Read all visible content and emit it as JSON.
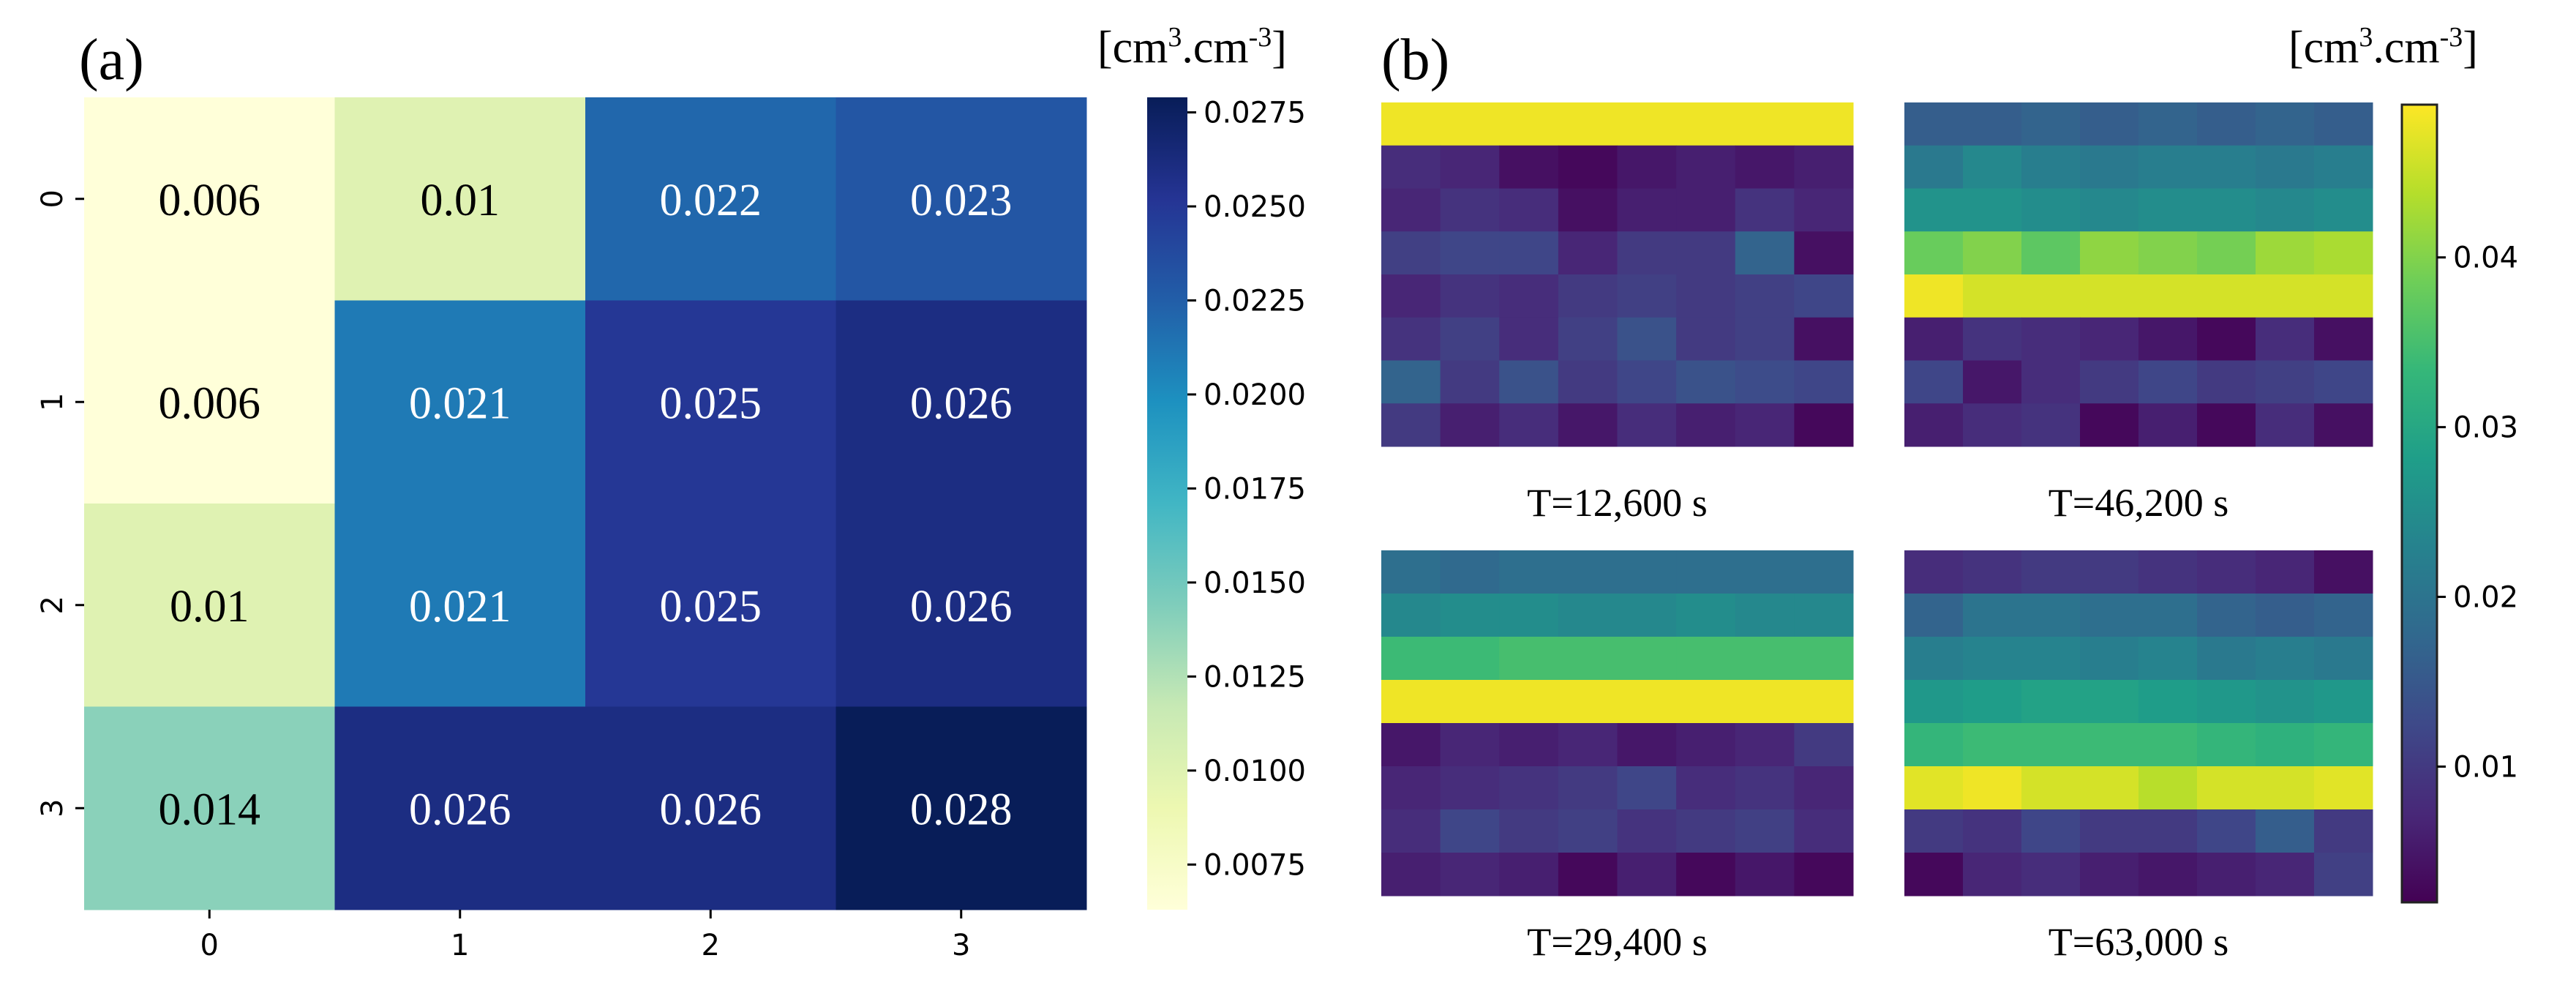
{
  "panel_a": {
    "label": "(a)",
    "unit_main": "[cm",
    "unit_sup1": "3",
    "unit_mid": ".cm",
    "unit_sup2": "-3",
    "unit_end": "]"
  },
  "panel_b": {
    "label": "(b)",
    "unit_main": "[cm",
    "unit_sup1": "3",
    "unit_mid": ".cm",
    "unit_sup2": "-3",
    "unit_end": "]",
    "captions": [
      "T=12,600 s",
      "T=46,200 s",
      "T=29,400 s",
      "T=63,000 s"
    ]
  },
  "chart_data": [
    {
      "type": "heatmap",
      "title": "(a)",
      "colormap": "YlGnBu",
      "x_ticks": [
        "0",
        "1",
        "2",
        "3"
      ],
      "y_ticks": [
        "0",
        "1",
        "2",
        "3"
      ],
      "values": [
        [
          0.006,
          0.01,
          0.022,
          0.023
        ],
        [
          0.006,
          0.021,
          0.025,
          0.026
        ],
        [
          0.01,
          0.021,
          0.025,
          0.026
        ],
        [
          0.014,
          0.026,
          0.026,
          0.028
        ]
      ],
      "value_labels": [
        [
          "0.006",
          "0.01",
          "0.022",
          "0.023"
        ],
        [
          "0.006",
          "0.021",
          "0.025",
          "0.026"
        ],
        [
          "0.01",
          "0.021",
          "0.025",
          "0.026"
        ],
        [
          "0.014",
          "0.026",
          "0.026",
          "0.028"
        ]
      ],
      "colorbar": {
        "range": [
          0.0063,
          0.0279
        ],
        "ticks": [
          0.0075,
          0.01,
          0.0125,
          0.015,
          0.0175,
          0.02,
          0.0225,
          0.025,
          0.0275
        ],
        "tick_labels": [
          "0.0075",
          "0.0100",
          "0.0125",
          "0.0150",
          "0.0175",
          "0.0200",
          "0.0225",
          "0.0250",
          "0.0275"
        ],
        "unit": "[cm3.cm-3]"
      }
    },
    {
      "type": "heatmap",
      "title": "(b)",
      "colormap": "viridis",
      "colorbar": {
        "range": [
          0.002,
          0.049
        ],
        "ticks": [
          0.01,
          0.02,
          0.03,
          0.04
        ],
        "tick_labels": [
          "0.01",
          "0.02",
          "0.03",
          "0.04"
        ],
        "unit": "[cm3.cm-3]"
      },
      "maps": [
        {
          "caption": "T=12,600 s",
          "grid": [
            [
              0.048,
              0.048,
              0.048,
              0.048,
              0.048,
              0.048,
              0.048,
              0.048
            ],
            [
              0.008,
              0.007,
              0.004,
              0.003,
              0.005,
              0.006,
              0.005,
              0.006
            ],
            [
              0.007,
              0.009,
              0.008,
              0.004,
              0.006,
              0.006,
              0.009,
              0.007
            ],
            [
              0.011,
              0.012,
              0.012,
              0.007,
              0.01,
              0.01,
              0.017,
              0.004
            ],
            [
              0.007,
              0.009,
              0.008,
              0.01,
              0.011,
              0.01,
              0.011,
              0.012
            ],
            [
              0.009,
              0.011,
              0.008,
              0.011,
              0.014,
              0.01,
              0.011,
              0.004
            ],
            [
              0.017,
              0.01,
              0.014,
              0.01,
              0.012,
              0.014,
              0.013,
              0.012
            ],
            [
              0.01,
              0.006,
              0.008,
              0.005,
              0.008,
              0.006,
              0.007,
              0.003
            ]
          ]
        },
        {
          "caption": "T=46,200 s",
          "grid": [
            [
              0.016,
              0.016,
              0.017,
              0.016,
              0.017,
              0.016,
              0.017,
              0.016
            ],
            [
              0.021,
              0.024,
              0.022,
              0.021,
              0.022,
              0.022,
              0.021,
              0.022
            ],
            [
              0.026,
              0.026,
              0.025,
              0.024,
              0.025,
              0.025,
              0.024,
              0.025
            ],
            [
              0.038,
              0.04,
              0.037,
              0.041,
              0.04,
              0.039,
              0.042,
              0.043
            ],
            [
              0.048,
              0.046,
              0.046,
              0.046,
              0.046,
              0.046,
              0.046,
              0.046
            ],
            [
              0.006,
              0.009,
              0.008,
              0.007,
              0.005,
              0.003,
              0.008,
              0.004
            ],
            [
              0.012,
              0.005,
              0.008,
              0.01,
              0.012,
              0.01,
              0.011,
              0.012
            ],
            [
              0.006,
              0.008,
              0.009,
              0.003,
              0.006,
              0.003,
              0.008,
              0.004
            ]
          ]
        },
        {
          "caption": "T=29,400 s",
          "grid": [
            [
              0.019,
              0.018,
              0.019,
              0.019,
              0.019,
              0.019,
              0.019,
              0.019
            ],
            [
              0.024,
              0.025,
              0.025,
              0.024,
              0.024,
              0.025,
              0.024,
              0.024
            ],
            [
              0.034,
              0.034,
              0.035,
              0.035,
              0.035,
              0.035,
              0.035,
              0.035
            ],
            [
              0.048,
              0.048,
              0.048,
              0.048,
              0.048,
              0.048,
              0.048,
              0.048
            ],
            [
              0.005,
              0.007,
              0.006,
              0.007,
              0.005,
              0.006,
              0.007,
              0.01
            ],
            [
              0.007,
              0.008,
              0.009,
              0.01,
              0.012,
              0.008,
              0.009,
              0.007
            ],
            [
              0.008,
              0.012,
              0.01,
              0.011,
              0.009,
              0.01,
              0.011,
              0.008
            ],
            [
              0.006,
              0.007,
              0.006,
              0.003,
              0.006,
              0.003,
              0.005,
              0.003
            ]
          ]
        },
        {
          "caption": "T=63,000 s",
          "grid": [
            [
              0.008,
              0.009,
              0.01,
              0.01,
              0.009,
              0.008,
              0.007,
              0.004
            ],
            [
              0.017,
              0.02,
              0.02,
              0.019,
              0.019,
              0.017,
              0.016,
              0.017
            ],
            [
              0.022,
              0.023,
              0.023,
              0.022,
              0.023,
              0.021,
              0.022,
              0.021
            ],
            [
              0.027,
              0.028,
              0.029,
              0.029,
              0.028,
              0.027,
              0.026,
              0.027
            ],
            [
              0.033,
              0.034,
              0.034,
              0.034,
              0.034,
              0.033,
              0.032,
              0.033
            ],
            [
              0.047,
              0.048,
              0.046,
              0.046,
              0.044,
              0.046,
              0.046,
              0.047
            ],
            [
              0.01,
              0.009,
              0.012,
              0.01,
              0.01,
              0.012,
              0.016,
              0.01
            ],
            [
              0.003,
              0.007,
              0.008,
              0.006,
              0.005,
              0.006,
              0.007,
              0.011
            ]
          ]
        }
      ]
    }
  ]
}
